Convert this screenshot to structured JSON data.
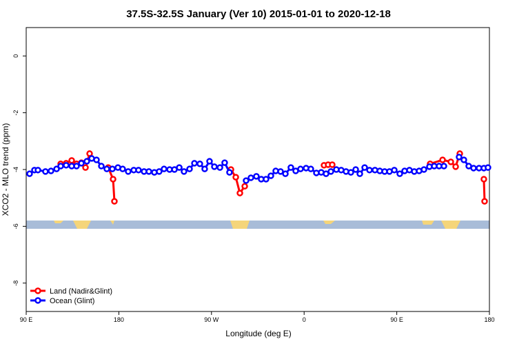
{
  "chart_data": {
    "type": "line",
    "title": "37.5S-32.5S January (Ver 10)   2015-01-01 to 2020-12-18",
    "xlabel": "Longitude (deg E)",
    "ylabel": "XCO2 - MLO trend (ppm)",
    "xlim": [
      90,
      540
    ],
    "ylim": [
      -9,
      1
    ],
    "xticks": [
      {
        "value": 90,
        "label": "90 E"
      },
      {
        "value": 180,
        "label": "180"
      },
      {
        "value": 270,
        "label": "90 W"
      },
      {
        "value": 360,
        "label": "0"
      },
      {
        "value": 450,
        "label": "90 E"
      },
      {
        "value": 540,
        "label": "180"
      }
    ],
    "yticks": [
      0,
      -2,
      -4,
      -6,
      -8
    ],
    "legend": "bottom-left",
    "series": [
      {
        "name": "Land (Nadir&Glint)",
        "color": "#ff0000",
        "x": [
          123.5,
          128.8,
          134.2,
          138.9,
          143.6,
          147.6,
          151.6,
          null,
          169.7,
          174.4,
          175.7,
          null,
          288.9,
          293.6,
          297.6,
          302.3,
          null,
          379.3,
          383.3,
          387.3,
          null,
          482.4,
          494.5,
          502.5,
          507.2,
          511.2,
          null,
          534.6,
          535.3
        ],
        "values": [
          -3.8,
          -3.78,
          -3.68,
          -3.8,
          -3.76,
          -3.93,
          -3.44,
          null,
          -3.93,
          -4.34,
          -5.12,
          null,
          -4.0,
          -4.27,
          -4.83,
          -4.59,
          null,
          -3.85,
          -3.83,
          -3.83,
          null,
          -3.8,
          -3.66,
          -3.73,
          -3.9,
          -3.44,
          null,
          -4.34,
          -5.12
        ]
      },
      {
        "name": "Ocean (Glint)",
        "color": "#0000ff",
        "x": [
          93.3,
          98,
          101.4,
          108.7,
          114.1,
          119.5,
          123.5,
          128.8,
          134.2,
          138.9,
          143.6,
          148.9,
          153.6,
          158.3,
          163,
          168.3,
          173.7,
          179.1,
          183.7,
          189.1,
          194.5,
          199.1,
          204.5,
          209.2,
          214.5,
          219.2,
          223.9,
          229.3,
          234,
          238.7,
          243.3,
          248.7,
          253.4,
          258.7,
          263.4,
          268.1,
          272.8,
          278.2,
          282.8,
          287.5,
          null,
          303.6,
          308.3,
          313.6,
          318.3,
          323,
          327.7,
          332.4,
          337.1,
          341.8,
          347.1,
          351.8,
          356.5,
          361.9,
          366.5,
          371.9,
          376.6,
          381.3,
          386,
          391.3,
          396,
          400.7,
          405.4,
          410.1,
          414.1,
          418.8,
          423.5,
          428.8,
          433.5,
          438.2,
          442.9,
          447.6,
          452.9,
          457.6,
          462.3,
          467,
          471.7,
          476.4,
          481.7,
          486.4,
          491.1,
          495.8,
          null,
          510.5,
          515.2,
          519.9,
          524.6,
          529.9,
          534.6,
          538.6
        ],
        "values": [
          -4.15,
          -4.02,
          -4.02,
          -4.07,
          -4.05,
          -3.98,
          -3.88,
          -3.85,
          -3.88,
          -3.88,
          -3.78,
          -3.71,
          -3.61,
          -3.66,
          -3.88,
          -3.98,
          -3.98,
          -3.93,
          -3.98,
          -4.07,
          -4.02,
          -4.02,
          -4.07,
          -4.07,
          -4.1,
          -4.07,
          -3.98,
          -4.0,
          -4.0,
          -3.93,
          -4.07,
          -3.98,
          -3.78,
          -3.8,
          -3.98,
          -3.71,
          -3.9,
          -3.93,
          -3.76,
          -4.1,
          null,
          -4.39,
          -4.29,
          -4.24,
          -4.34,
          -4.34,
          -4.22,
          -4.05,
          -4.07,
          -4.15,
          -3.93,
          -4.05,
          -3.98,
          -3.95,
          -3.98,
          -4.12,
          -4.1,
          -4.15,
          -4.07,
          -4.0,
          -4.02,
          -4.07,
          -4.1,
          -4.0,
          -4.15,
          -3.93,
          -4.02,
          -4.02,
          -4.05,
          -4.07,
          -4.07,
          -4.02,
          -4.15,
          -4.05,
          -4.02,
          -4.07,
          -4.05,
          -4.0,
          -3.9,
          -3.88,
          -3.88,
          -3.88,
          null,
          -3.56,
          -3.66,
          -3.88,
          -3.95,
          -3.95,
          -3.95,
          -3.93
        ]
      }
    ]
  }
}
